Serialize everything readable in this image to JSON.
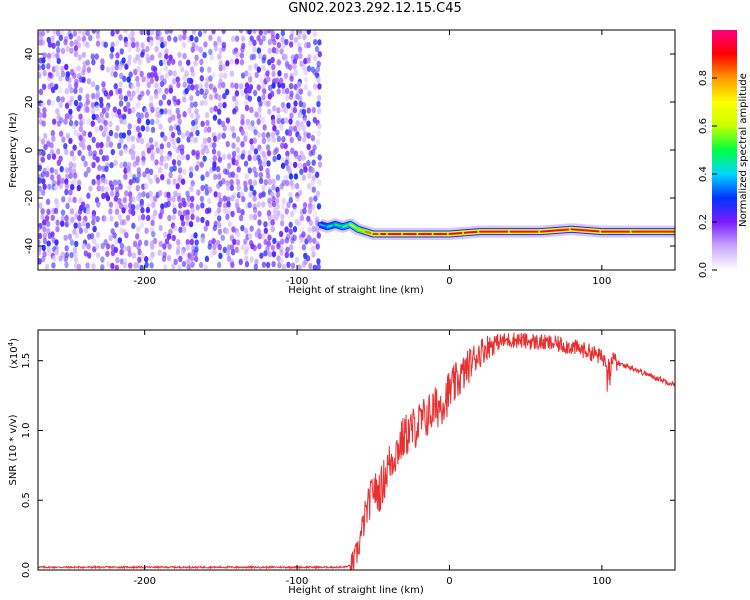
{
  "title": "GN02.2023.292.12.15.C45",
  "chart_data": [
    {
      "type": "heatmap",
      "title": "GN02.2023.292.12.15.C45",
      "xlabel": "Height of straight line (km)",
      "ylabel": "Frequency (Hz)",
      "xlim": [
        -270,
        148
      ],
      "ylim": [
        -50,
        50
      ],
      "xticks": [
        -200,
        -100,
        0,
        100
      ],
      "yticks": [
        -40,
        -20,
        0,
        20,
        40
      ],
      "colorbar": {
        "label": "Normalized spectral amplitude",
        "range": [
          0.0,
          1.0
        ],
        "ticks": [
          "0.0",
          "0.2",
          "0.4",
          "0.6",
          "0.8"
        ],
        "colormap": [
          "#ffffff",
          "#c9a6ff",
          "#7a1cff",
          "#0033ff",
          "#00d8ff",
          "#00ff40",
          "#c8ff00",
          "#ffff00",
          "#ff9900",
          "#ff0000",
          "#ff0080"
        ]
      },
      "noise_region": {
        "x_range": [
          -270,
          -85
        ],
        "y_range": [
          -50,
          50
        ],
        "amplitude_range": [
          0.0,
          0.25
        ]
      },
      "signal_track": {
        "x": [
          -85,
          -80,
          -75,
          -70,
          -65,
          -60,
          -55,
          -50,
          -45,
          -40,
          -30,
          -20,
          -10,
          0,
          10,
          20,
          40,
          60,
          80,
          100,
          120,
          148
        ],
        "frequency_hz": [
          -31,
          -32,
          -31,
          -32,
          -31,
          -33,
          -34,
          -35,
          -35,
          -35,
          -35,
          -35,
          -35,
          -35,
          -34.5,
          -34,
          -34,
          -34,
          -33,
          -34,
          -34,
          -34
        ],
        "amplitude": [
          0.3,
          0.45,
          0.5,
          0.5,
          0.55,
          0.7,
          0.8,
          0.85,
          0.9,
          0.9,
          0.92,
          0.92,
          0.9,
          0.9,
          0.9,
          0.92,
          0.95,
          0.95,
          0.95,
          0.95,
          0.9,
          0.88
        ]
      }
    },
    {
      "type": "line",
      "xlabel": "Height of straight line (km)",
      "ylabel": "SNR (10 * v/v)",
      "y_multiplier": "(x10",
      "y_multiplier_exp": "4",
      "y_multiplier_close": ")",
      "xlim": [
        -270,
        148
      ],
      "ylim": [
        0.0,
        1.72
      ],
      "xticks": [
        -200,
        -100,
        0,
        100
      ],
      "yticks": [
        "0.0",
        "0.5",
        "1.0",
        "1.5"
      ],
      "color": "#e83030",
      "series": [
        {
          "x": [
            -270,
            -200,
            -150,
            -100,
            -70,
            -65,
            -62,
            -60,
            -58,
            -55,
            -52,
            -50,
            -48,
            -45,
            -40,
            -35,
            -30,
            -25,
            -20,
            -15,
            -10,
            -5,
            0,
            5,
            10,
            15,
            20,
            25,
            30,
            35,
            40,
            45,
            50,
            60,
            70,
            80,
            90,
            95,
            100,
            103,
            105,
            110,
            120,
            130,
            140,
            148
          ],
          "y": [
            0.02,
            0.02,
            0.02,
            0.02,
            0.02,
            0.03,
            0.08,
            0.15,
            0.25,
            0.4,
            0.5,
            0.6,
            0.55,
            0.58,
            0.75,
            0.85,
            0.95,
            1.0,
            1.05,
            1.1,
            1.15,
            1.2,
            1.28,
            1.35,
            1.42,
            1.5,
            1.56,
            1.6,
            1.63,
            1.64,
            1.65,
            1.65,
            1.64,
            1.63,
            1.62,
            1.6,
            1.57,
            1.55,
            1.52,
            1.5,
            1.55,
            1.48,
            1.45,
            1.4,
            1.36,
            1.33
          ]
        }
      ]
    }
  ]
}
